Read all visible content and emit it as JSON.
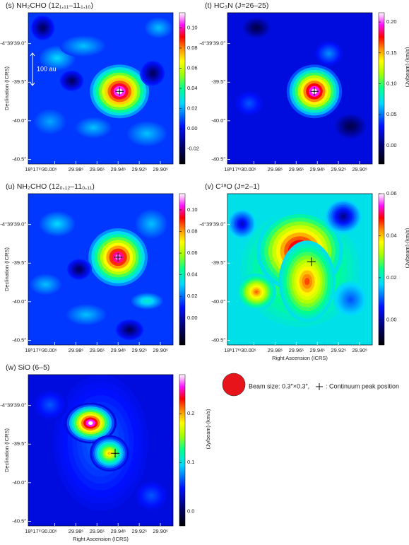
{
  "chart_data": [
    {
      "type": "heatmap",
      "title": "(s) NH₂CHO (12₁,₁₁–11₁,₁₀)",
      "ylabel": "Declination (ICRS)",
      "annotation": "100 au",
      "xlim": [
        30.025,
        29.888
      ],
      "xticks": [
        {
          "value": 30.0,
          "label": "18ʰ17ᵐ30.00ˢ"
        },
        {
          "value": 29.98,
          "label": "29.98ˢ"
        },
        {
          "value": 29.96,
          "label": "29.96ˢ"
        },
        {
          "value": 29.94,
          "label": "29.94ˢ"
        },
        {
          "value": 29.92,
          "label": "29.92ˢ"
        },
        {
          "value": 29.9,
          "label": "29.90ˢ"
        }
      ],
      "ylim": [
        -40.56,
        -38.6
      ],
      "yticks": [
        {
          "value": -39.0,
          "label": "-4°39′39.0″"
        },
        {
          "value": -39.5,
          "label": "-39.5″"
        },
        {
          "value": -40.0,
          "label": "-40.0″"
        },
        {
          "value": -40.5,
          "label": "-40.5″"
        }
      ],
      "clim": [
        -0.035,
        0.115
      ],
      "cticks": [
        {
          "value": -0.02,
          "label": "-0.02"
        },
        {
          "value": 0,
          "label": "0.00"
        },
        {
          "value": 0.02,
          "label": "0.02"
        },
        {
          "value": 0.04,
          "label": "0.04"
        },
        {
          "value": 0.06,
          "label": "0.06"
        },
        {
          "value": 0.08,
          "label": "0.08"
        },
        {
          "value": 0.1,
          "label": "0.10"
        }
      ]
    },
    {
      "type": "heatmap",
      "title": "(t) HC₃N (J=26–25)",
      "clabel": "(Jy/beam)·(km/s)",
      "xlim": [
        30.025,
        29.888
      ],
      "xticks": [
        {
          "value": 30.0,
          "label": "18ʰ17ᵐ30.00ˢ"
        },
        {
          "value": 29.98,
          "label": "29.98ˢ"
        },
        {
          "value": 29.96,
          "label": "29.96ˢ"
        },
        {
          "value": 29.94,
          "label": "29.94ˢ"
        },
        {
          "value": 29.92,
          "label": "29.92ˢ"
        },
        {
          "value": 29.9,
          "label": "29.90ˢ"
        }
      ],
      "ylim": [
        -40.56,
        -38.6
      ],
      "yticks": [
        {
          "value": -39.0,
          "label": "-4°39′39.0″"
        },
        {
          "value": -39.5,
          "label": "-39.5″"
        },
        {
          "value": -40.0,
          "label": "-40.0″"
        },
        {
          "value": -40.5,
          "label": "-40.5″"
        }
      ],
      "clim": [
        -0.03,
        0.215
      ],
      "cticks": [
        {
          "value": 0,
          "label": "0.00"
        },
        {
          "value": 0.05,
          "label": "0.05"
        },
        {
          "value": 0.1,
          "label": "0.10"
        },
        {
          "value": 0.15,
          "label": "0.15"
        },
        {
          "value": 0.2,
          "label": "0.20"
        }
      ]
    },
    {
      "type": "heatmap",
      "title": "(u) NH₂CHO (12₀,₁₂–11₀,₁₁)",
      "ylabel": "Declination (ICRS)",
      "xlim": [
        30.025,
        29.888
      ],
      "xticks": [
        {
          "value": 30.0,
          "label": "18ʰ17ᵐ30.00ˢ"
        },
        {
          "value": 29.98,
          "label": "29.98ˢ"
        },
        {
          "value": 29.96,
          "label": "29.96ˢ"
        },
        {
          "value": 29.94,
          "label": "29.94ˢ"
        },
        {
          "value": 29.92,
          "label": "29.92ˢ"
        },
        {
          "value": 29.9,
          "label": "29.90ˢ"
        }
      ],
      "ylim": [
        -40.56,
        -38.6
      ],
      "yticks": [
        {
          "value": -39.0,
          "label": "-4°39′39.0″"
        },
        {
          "value": -39.5,
          "label": "-39.5″"
        },
        {
          "value": -40.0,
          "label": "-40.0″"
        },
        {
          "value": -40.5,
          "label": "-40.5″"
        }
      ],
      "clim": [
        -0.025,
        0.115
      ],
      "cticks": [
        {
          "value": 0,
          "label": "0.00"
        },
        {
          "value": 0.02,
          "label": "0.02"
        },
        {
          "value": 0.04,
          "label": "0.04"
        },
        {
          "value": 0.06,
          "label": "0.06"
        },
        {
          "value": 0.08,
          "label": "0.08"
        },
        {
          "value": 0.1,
          "label": "0.10"
        }
      ]
    },
    {
      "type": "heatmap",
      "title": "(v) C¹⁸O (J=2–1)",
      "xlabel": "Right Ascension (ICRS)",
      "clabel": "(Jy/beam)·(km/s)",
      "xlim": [
        30.025,
        29.888
      ],
      "xticks": [
        {
          "value": 30.0,
          "label": "18ʰ17ᵐ30.00ˢ"
        },
        {
          "value": 29.98,
          "label": "29.98ˢ"
        },
        {
          "value": 29.96,
          "label": "29.96ˢ"
        },
        {
          "value": 29.94,
          "label": "29.94ˢ"
        },
        {
          "value": 29.92,
          "label": "29.92ˢ"
        },
        {
          "value": 29.9,
          "label": "29.90ˢ"
        }
      ],
      "ylim": [
        -40.56,
        -38.6
      ],
      "yticks": [
        {
          "value": -39.0,
          "label": "-4°39′39.0″"
        },
        {
          "value": -39.5,
          "label": "-39.5″"
        },
        {
          "value": -40.0,
          "label": "-40.0″"
        },
        {
          "value": -40.5,
          "label": "-40.5″"
        }
      ],
      "clim": [
        -0.012,
        0.06
      ],
      "cticks": [
        {
          "value": 0,
          "label": "0.00"
        },
        {
          "value": 0.02,
          "label": "0.02"
        },
        {
          "value": 0.04,
          "label": "0.04"
        },
        {
          "value": 0.06,
          "label": "0.06"
        }
      ]
    },
    {
      "type": "heatmap",
      "title": "(w) SiO (6–5)",
      "xlabel": "Right Ascension (ICRS)",
      "ylabel": "Declination (ICRS)",
      "clabel": "(Jy/beam)·(km/s)",
      "xlim": [
        30.025,
        29.888
      ],
      "xticks": [
        {
          "value": 30.0,
          "label": "18ʰ17ᵐ30.00ˢ"
        },
        {
          "value": 29.98,
          "label": "29.98ˢ"
        },
        {
          "value": 29.96,
          "label": "29.96ˢ"
        },
        {
          "value": 29.94,
          "label": "29.94ˢ"
        },
        {
          "value": 29.92,
          "label": "29.92ˢ"
        },
        {
          "value": 29.9,
          "label": "29.90ˢ"
        }
      ],
      "ylim": [
        -40.56,
        -38.6
      ],
      "yticks": [
        {
          "value": -39.0,
          "label": "-4°39′39.0″"
        },
        {
          "value": -39.5,
          "label": "-39.5″"
        },
        {
          "value": -40.0,
          "label": "-40.0″"
        },
        {
          "value": -40.5,
          "label": "-40.5″"
        }
      ],
      "clim": [
        -0.03,
        0.28
      ],
      "cticks": [
        {
          "value": 0,
          "label": "0.0"
        },
        {
          "value": 0.1,
          "label": "0.1"
        },
        {
          "value": 0.2,
          "label": "0.2"
        }
      ]
    }
  ],
  "legend": {
    "beam": "Beam size: 0.3″×0.3″,",
    "peak": ": Continuum peak position"
  }
}
